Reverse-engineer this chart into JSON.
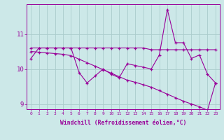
{
  "xlabel": "Windchill (Refroidissement éolien,°C)",
  "hours": [
    0,
    1,
    2,
    3,
    4,
    5,
    6,
    7,
    8,
    9,
    10,
    11,
    12,
    13,
    14,
    15,
    16,
    17,
    18,
    19,
    20,
    21,
    22,
    23
  ],
  "line1": [
    10.3,
    10.6,
    10.6,
    10.6,
    10.6,
    10.6,
    9.9,
    9.6,
    9.8,
    10.0,
    9.85,
    9.75,
    10.15,
    10.1,
    10.05,
    10.0,
    10.4,
    11.7,
    10.75,
    10.75,
    10.3,
    10.4,
    9.85,
    9.6
  ],
  "line2": [
    10.6,
    10.6,
    10.6,
    10.6,
    10.6,
    10.6,
    10.6,
    10.6,
    10.6,
    10.6,
    10.6,
    10.6,
    10.6,
    10.6,
    10.6,
    10.55,
    10.55,
    10.55,
    10.55,
    10.55,
    10.55,
    10.55,
    10.55,
    10.55
  ],
  "line3": [
    10.5,
    10.48,
    10.46,
    10.44,
    10.42,
    10.38,
    10.28,
    10.18,
    10.08,
    9.98,
    9.88,
    9.78,
    9.68,
    9.62,
    9.55,
    9.48,
    9.38,
    9.28,
    9.18,
    9.08,
    9.0,
    8.92,
    8.82,
    9.6
  ],
  "color": "#990099",
  "bg_color": "#cce8e8",
  "grid_color": "#aacccc",
  "ylim": [
    8.85,
    11.85
  ],
  "yticks": [
    9,
    10,
    11
  ],
  "xticks": [
    0,
    1,
    2,
    3,
    4,
    5,
    6,
    7,
    8,
    9,
    10,
    11,
    12,
    13,
    14,
    15,
    16,
    17,
    18,
    19,
    20,
    21,
    22,
    23
  ]
}
